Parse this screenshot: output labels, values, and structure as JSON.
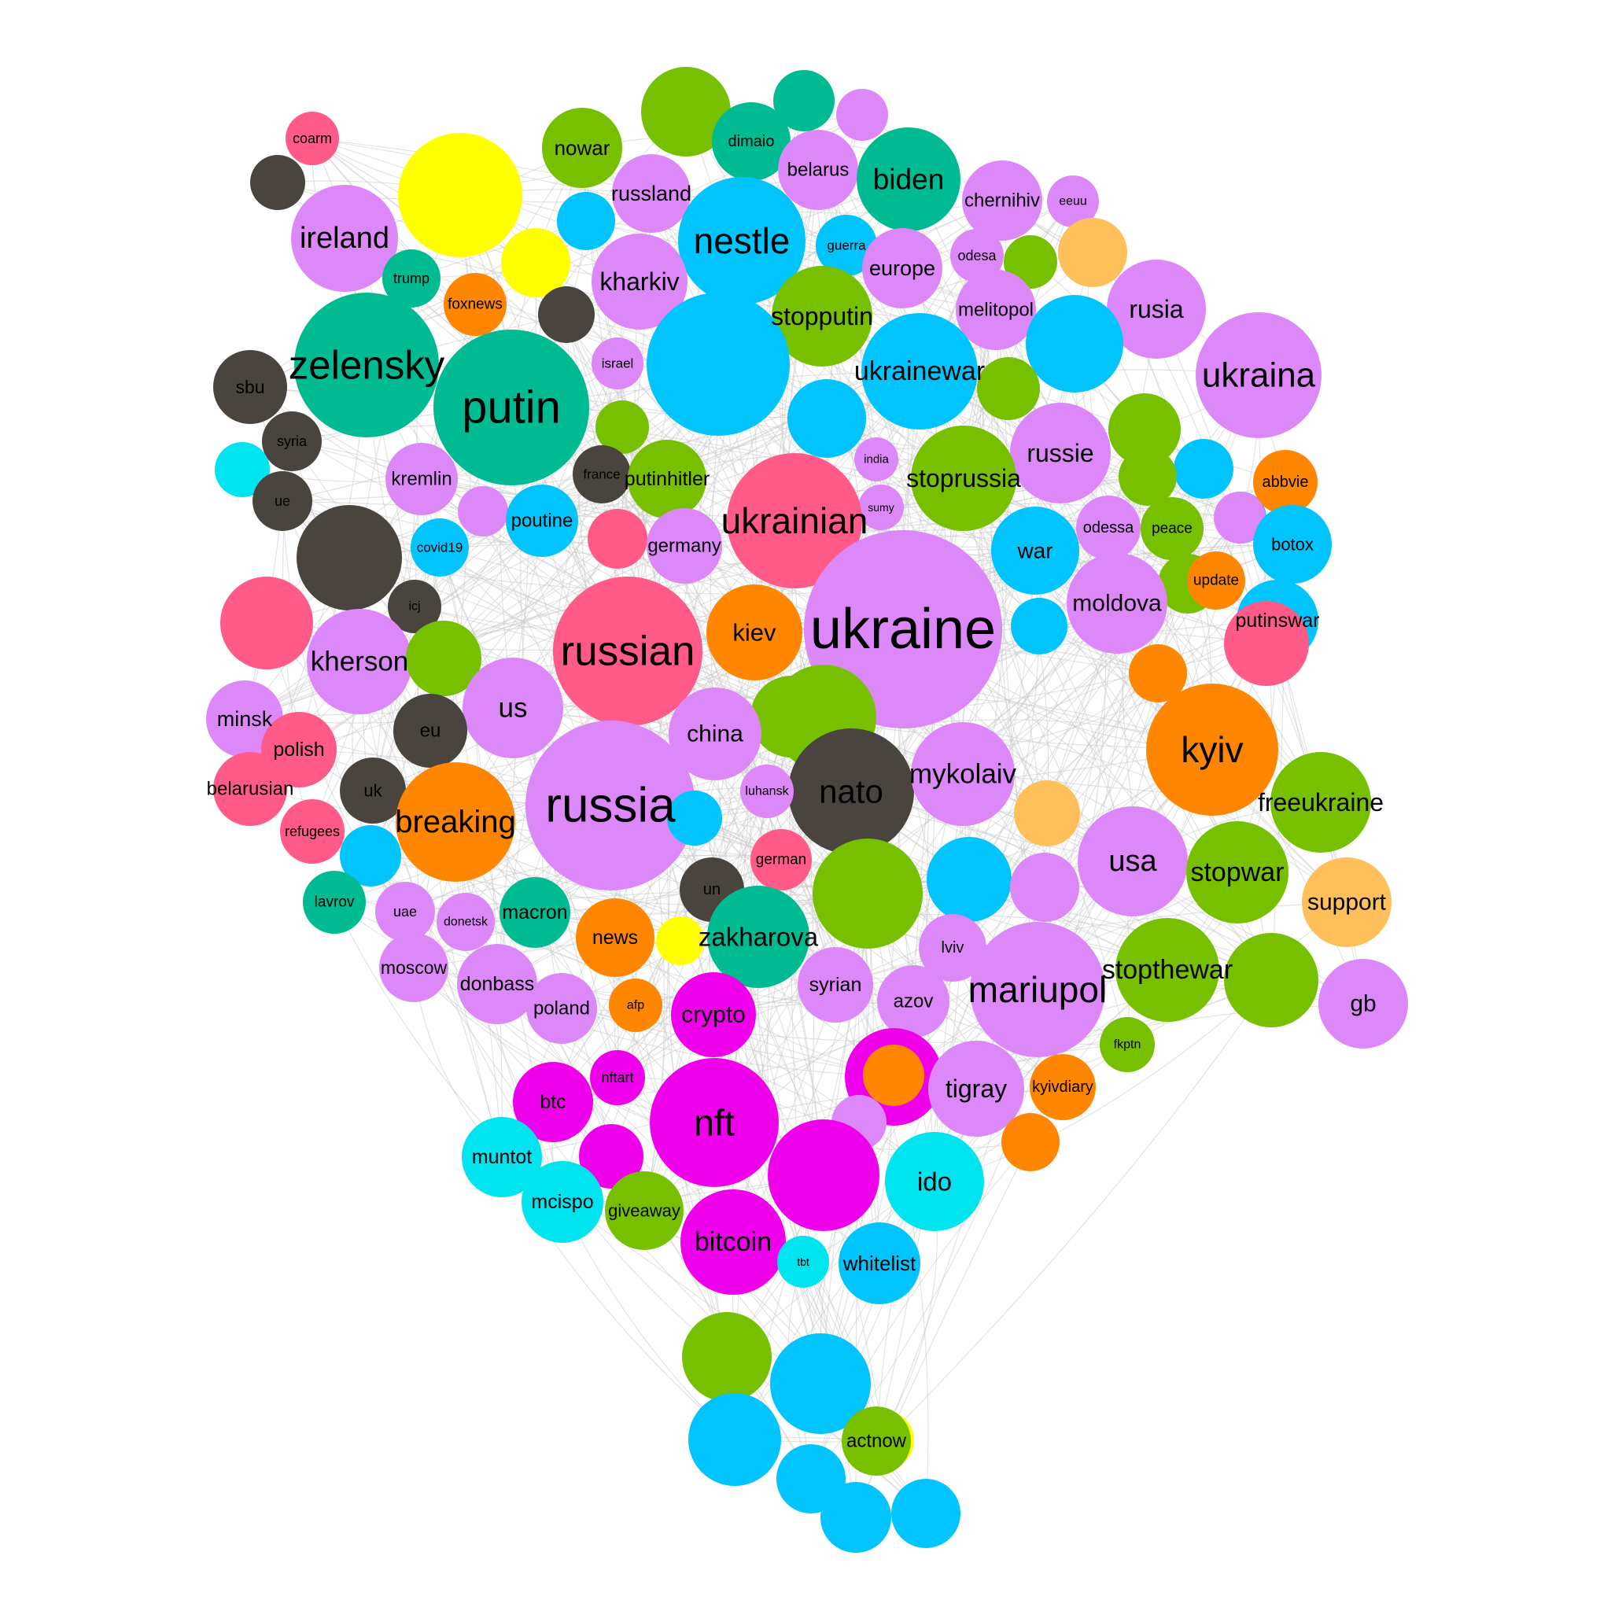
{
  "graph": {
    "edge_color": "#c8c8c8",
    "communities": {
      "lavender": "#dc88f8",
      "teal": "#00ba92",
      "green": "#76c000",
      "sky": "#00c4fb",
      "pink": "#ff5a88",
      "orange": "#ff8600",
      "charcoal": "#4a443e",
      "yellow": "#ffff00",
      "magenta": "#ef00ea",
      "cyan": "#00e4f0",
      "peach": "#ffc05c"
    },
    "nodes": [
      {
        "label": "coarm",
        "group": "pink"
      },
      {
        "label": "",
        "group": "charcoal"
      },
      {
        "label": "ireland",
        "group": "lavender"
      },
      {
        "label": "",
        "group": "yellow"
      },
      {
        "label": "nowar",
        "group": "green"
      },
      {
        "label": "",
        "group": "green"
      },
      {
        "label": "dimaio",
        "group": "teal"
      },
      {
        "label": "",
        "group": "teal"
      },
      {
        "label": "",
        "group": "lavender"
      },
      {
        "label": "belarus",
        "group": "lavender"
      },
      {
        "label": "biden",
        "group": "teal"
      },
      {
        "label": "russland",
        "group": "lavender"
      },
      {
        "label": "",
        "group": "sky"
      },
      {
        "label": "nestle",
        "group": "sky"
      },
      {
        "label": "chernihiv",
        "group": "lavender"
      },
      {
        "label": "eeuu",
        "group": "lavender"
      },
      {
        "label": "guerra",
        "group": "sky"
      },
      {
        "label": "",
        "group": "yellow"
      },
      {
        "label": "trump",
        "group": "teal"
      },
      {
        "label": "kharkiv",
        "group": "lavender"
      },
      {
        "label": "europe",
        "group": "lavender"
      },
      {
        "label": "odesa",
        "group": "lavender"
      },
      {
        "label": "",
        "group": "green"
      },
      {
        "label": "",
        "group": "peach"
      },
      {
        "label": "foxnews",
        "group": "orange"
      },
      {
        "label": "",
        "group": "charcoal"
      },
      {
        "label": "stopputin",
        "group": "green"
      },
      {
        "label": "melitopol",
        "group": "lavender"
      },
      {
        "label": "rusia",
        "group": "lavender"
      },
      {
        "label": "zelensky",
        "group": "teal"
      },
      {
        "label": "putin",
        "group": "teal"
      },
      {
        "label": "",
        "group": "sky"
      },
      {
        "label": "",
        "group": "sky"
      },
      {
        "label": "israel",
        "group": "lavender"
      },
      {
        "label": "ukrainewar",
        "group": "sky"
      },
      {
        "label": "ukraina",
        "group": "lavender"
      },
      {
        "label": "sbu",
        "group": "charcoal"
      },
      {
        "label": "",
        "group": "green"
      },
      {
        "label": "",
        "group": "green"
      },
      {
        "label": "syria",
        "group": "charcoal"
      },
      {
        "label": "",
        "group": "sky"
      },
      {
        "label": "",
        "group": "green"
      },
      {
        "label": "russie",
        "group": "lavender"
      },
      {
        "label": "",
        "group": "cyan"
      },
      {
        "label": "kremlin",
        "group": "lavender"
      },
      {
        "label": "france",
        "group": "charcoal"
      },
      {
        "label": "putinhitler",
        "group": "green"
      },
      {
        "label": "india",
        "group": "lavender"
      },
      {
        "label": "stoprussia",
        "group": "green"
      },
      {
        "label": "",
        "group": "sky"
      },
      {
        "label": "",
        "group": "green"
      },
      {
        "label": "",
        "group": "sky"
      },
      {
        "label": "abbvie",
        "group": "orange"
      },
      {
        "label": "ue",
        "group": "charcoal"
      },
      {
        "label": "",
        "group": "lavender"
      },
      {
        "label": "poutine",
        "group": "sky"
      },
      {
        "label": "sumy",
        "group": "lavender"
      },
      {
        "label": "ukrainian",
        "group": "pink"
      },
      {
        "label": "odessa",
        "group": "lavender"
      },
      {
        "label": "peace",
        "group": "green"
      },
      {
        "label": "",
        "group": "lavender"
      },
      {
        "label": "",
        "group": "charcoal"
      },
      {
        "label": "",
        "group": "pink"
      },
      {
        "label": "germany",
        "group": "lavender"
      },
      {
        "label": "covid19",
        "group": "sky"
      },
      {
        "label": "war",
        "group": "sky"
      },
      {
        "label": "botox",
        "group": "sky"
      },
      {
        "label": "",
        "group": "green"
      },
      {
        "label": "update",
        "group": "orange"
      },
      {
        "label": "",
        "group": "pink"
      },
      {
        "label": "icj",
        "group": "charcoal"
      },
      {
        "label": "moldova",
        "group": "lavender"
      },
      {
        "label": "ukraine",
        "group": "lavender"
      },
      {
        "label": "russian",
        "group": "pink"
      },
      {
        "label": "kiev",
        "group": "orange"
      },
      {
        "label": "",
        "group": "sky"
      },
      {
        "label": "putinswar",
        "group": "sky"
      },
      {
        "label": "",
        "group": "pink"
      },
      {
        "label": "kherson",
        "group": "lavender"
      },
      {
        "label": "",
        "group": "green"
      },
      {
        "label": "",
        "group": "orange"
      },
      {
        "label": "",
        "group": "green"
      },
      {
        "label": "minsk",
        "group": "lavender"
      },
      {
        "label": "us",
        "group": "lavender"
      },
      {
        "label": "",
        "group": "green"
      },
      {
        "label": "eu",
        "group": "charcoal"
      },
      {
        "label": "polish",
        "group": "pink"
      },
      {
        "label": "china",
        "group": "lavender"
      },
      {
        "label": "kyiv",
        "group": "orange"
      },
      {
        "label": "belarusian",
        "group": "pink"
      },
      {
        "label": "nato",
        "group": "charcoal"
      },
      {
        "label": "mykolaiv",
        "group": "lavender"
      },
      {
        "label": "uk",
        "group": "charcoal"
      },
      {
        "label": "luhansk",
        "group": "lavender"
      },
      {
        "label": "freeukraine",
        "group": "green"
      },
      {
        "label": "russia",
        "group": "lavender"
      },
      {
        "label": "breaking",
        "group": "orange"
      },
      {
        "label": "",
        "group": "peach"
      },
      {
        "label": "refugees",
        "group": "pink"
      },
      {
        "label": "",
        "group": "sky"
      },
      {
        "label": "",
        "group": "sky"
      },
      {
        "label": "german",
        "group": "pink"
      },
      {
        "label": "usa",
        "group": "lavender"
      },
      {
        "label": "stopwar",
        "group": "green"
      },
      {
        "label": "",
        "group": "sky"
      },
      {
        "label": "",
        "group": "green"
      },
      {
        "label": "lavrov",
        "group": "teal"
      },
      {
        "label": "un",
        "group": "charcoal"
      },
      {
        "label": "",
        "group": "lavender"
      },
      {
        "label": "support",
        "group": "peach"
      },
      {
        "label": "uae",
        "group": "lavender"
      },
      {
        "label": "donetsk",
        "group": "lavender"
      },
      {
        "label": "macron",
        "group": "teal"
      },
      {
        "label": "news",
        "group": "orange"
      },
      {
        "label": "",
        "group": "yellow"
      },
      {
        "label": "zakharova",
        "group": "teal"
      },
      {
        "label": "lviv",
        "group": "lavender"
      },
      {
        "label": "moscow",
        "group": "lavender"
      },
      {
        "label": "stopthewar",
        "group": "green"
      },
      {
        "label": "",
        "group": "green"
      },
      {
        "label": "donbass",
        "group": "lavender"
      },
      {
        "label": "syrian",
        "group": "lavender"
      },
      {
        "label": "azov",
        "group": "lavender"
      },
      {
        "label": "mariupol",
        "group": "lavender"
      },
      {
        "label": "gb",
        "group": "lavender"
      },
      {
        "label": "poland",
        "group": "lavender"
      },
      {
        "label": "afp",
        "group": "orange"
      },
      {
        "label": "crypto",
        "group": "magenta"
      },
      {
        "label": "fkptn",
        "group": "green"
      },
      {
        "label": "nftart",
        "group": "magenta"
      },
      {
        "label": "",
        "group": "magenta"
      },
      {
        "label": "",
        "group": "orange"
      },
      {
        "label": "btc",
        "group": "magenta"
      },
      {
        "label": "nft",
        "group": "magenta"
      },
      {
        "label": "tigray",
        "group": "lavender"
      },
      {
        "label": "kyivdiary",
        "group": "orange"
      },
      {
        "label": "",
        "group": "lavender"
      },
      {
        "label": "",
        "group": "orange"
      },
      {
        "label": "muntot",
        "group": "cyan"
      },
      {
        "label": "",
        "group": "magenta"
      },
      {
        "label": "",
        "group": "magenta"
      },
      {
        "label": "ido",
        "group": "cyan"
      },
      {
        "label": "mcispo",
        "group": "cyan"
      },
      {
        "label": "giveaway",
        "group": "green"
      },
      {
        "label": "bitcoin",
        "group": "magenta"
      },
      {
        "label": "tbt",
        "group": "cyan"
      },
      {
        "label": "whitelist",
        "group": "sky"
      },
      {
        "label": "",
        "group": "green"
      },
      {
        "label": "",
        "group": "sky"
      },
      {
        "label": "",
        "group": "sky"
      },
      {
        "label": "",
        "group": "yellow"
      },
      {
        "label": "actnow",
        "group": "green"
      },
      {
        "label": "",
        "group": "sky"
      },
      {
        "label": "",
        "group": "sky"
      },
      {
        "label": "",
        "group": "sky"
      }
    ]
  }
}
